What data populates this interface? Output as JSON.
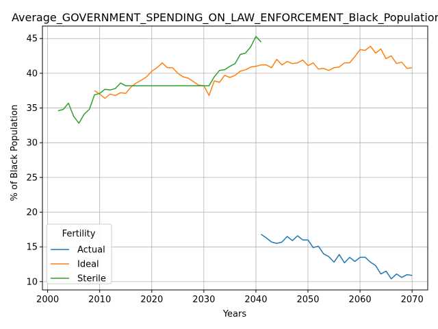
{
  "chart_data": {
    "type": "line",
    "title": "Average_GOVERNMENT_SPENDING_ON_LAW_ENFORCEMENT_Black_Population",
    "xlabel": "Years",
    "ylabel": "% of Black Population",
    "xlim": [
      1999,
      2073
    ],
    "ylim": [
      8.8,
      46.8
    ],
    "xticks": [
      2000,
      2010,
      2020,
      2030,
      2040,
      2050,
      2060,
      2070
    ],
    "yticks": [
      10,
      15,
      20,
      25,
      30,
      35,
      40,
      45
    ],
    "grid": true,
    "legend": {
      "title": "Fertility",
      "placement": "bottom-left"
    },
    "series": [
      {
        "name": "Actual",
        "color": "#1f77b4",
        "x": [
          2041,
          2042,
          2043,
          2044,
          2045,
          2046,
          2047,
          2048,
          2049,
          2050,
          2051,
          2052,
          2053,
          2054,
          2055,
          2056,
          2057,
          2058,
          2059,
          2060,
          2061,
          2062,
          2063,
          2064,
          2065,
          2066,
          2067,
          2068,
          2069,
          2070
        ],
        "y": [
          16.8,
          16.3,
          15.7,
          15.5,
          15.7,
          16.5,
          15.9,
          16.6,
          16.0,
          16.0,
          14.9,
          15.1,
          14.0,
          13.6,
          12.8,
          13.9,
          12.7,
          13.5,
          12.9,
          13.5,
          13.5,
          12.8,
          12.3,
          11.1,
          11.5,
          10.4,
          11.1,
          10.6,
          11.0,
          10.9
        ]
      },
      {
        "name": "Ideal",
        "color": "#ff7f0e",
        "x": [
          2009,
          2010,
          2011,
          2012,
          2013,
          2014,
          2015,
          2016,
          2017,
          2018,
          2019,
          2020,
          2021,
          2022,
          2023,
          2024,
          2025,
          2026,
          2027,
          2028,
          2029,
          2030,
          2031,
          2032,
          2033,
          2034,
          2035,
          2036,
          2037,
          2038,
          2039,
          2040,
          2041,
          2042,
          2043,
          2044,
          2045,
          2046,
          2047,
          2048,
          2049,
          2050,
          2051,
          2052,
          2053,
          2054,
          2055,
          2056,
          2057,
          2058,
          2059,
          2060,
          2061,
          2062,
          2063,
          2064,
          2065,
          2066,
          2067,
          2068,
          2069,
          2070
        ],
        "y": [
          37.5,
          37.0,
          36.4,
          37.0,
          36.8,
          37.2,
          37.1,
          38.0,
          38.6,
          39.0,
          39.5,
          40.3,
          40.8,
          41.5,
          40.8,
          40.8,
          40.0,
          39.5,
          39.3,
          38.8,
          38.3,
          38.2,
          36.8,
          38.9,
          38.7,
          39.7,
          39.4,
          39.7,
          40.3,
          40.5,
          40.9,
          41.0,
          41.2,
          41.2,
          40.8,
          42.0,
          41.2,
          41.7,
          41.4,
          41.5,
          41.9,
          41.1,
          41.5,
          40.6,
          40.7,
          40.4,
          40.8,
          40.9,
          41.5,
          41.5,
          42.4,
          43.4,
          43.3,
          43.9,
          42.9,
          43.5,
          42.1,
          42.5,
          41.4,
          41.6,
          40.7,
          40.8
        ]
      },
      {
        "name": "Sterile",
        "color": "#2ca02c",
        "x": [
          2002,
          2003,
          2004,
          2005,
          2006,
          2007,
          2008,
          2009,
          2010,
          2011,
          2012,
          2013,
          2014,
          2015,
          2016,
          2017,
          2018,
          2019,
          2020,
          2021,
          2022,
          2023,
          2024,
          2025,
          2026,
          2027,
          2028,
          2029,
          2030,
          2031,
          2032,
          2033,
          2034,
          2035,
          2036,
          2037,
          2038,
          2039,
          2040,
          2041
        ],
        "y": [
          34.6,
          34.8,
          35.7,
          33.8,
          32.8,
          34.1,
          34.8,
          36.9,
          37.1,
          37.7,
          37.6,
          37.8,
          38.6,
          38.2,
          38.2,
          38.2,
          38.2,
          38.2,
          38.2,
          38.2,
          38.2,
          38.2,
          38.2,
          38.2,
          38.2,
          38.2,
          38.2,
          38.2,
          38.2,
          38.2,
          39.5,
          40.4,
          40.5,
          41.0,
          41.4,
          42.7,
          42.9,
          43.8,
          45.3,
          44.5
        ]
      }
    ]
  }
}
